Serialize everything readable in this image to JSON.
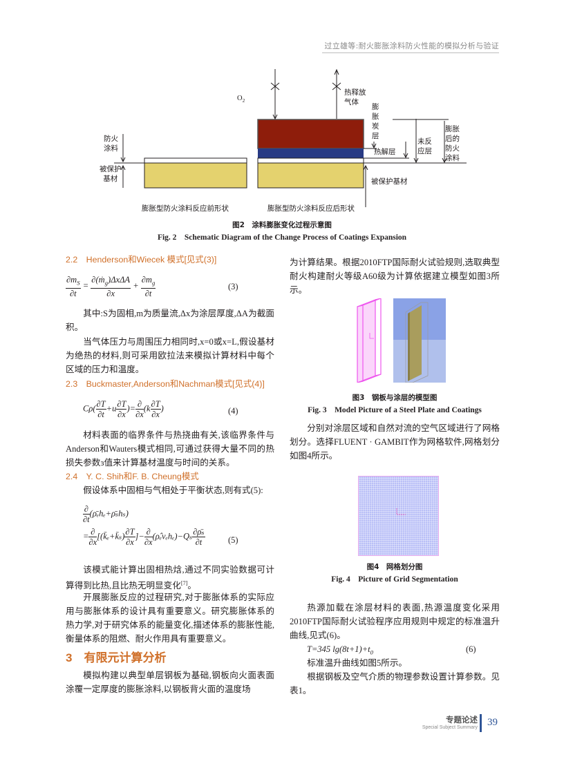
{
  "header": {
    "running_title": "过立雄等:耐火膨胀涂料防火性能的模拟分析与验证"
  },
  "figure2": {
    "labels": {
      "o2": "O",
      "o2_sub": "2",
      "gas": "热释放\n气体",
      "char": "膨\n胀\n炭\n层",
      "pyrolysis": "热解层",
      "unreacted": "未反\n应层",
      "expanded": "膨胀\n后的\n防火\n涂料",
      "coating": "防火\n涂料",
      "substrate_left": "被保护\n基材",
      "substrate_right": "被保护基材",
      "before": "膨胀型防火涂料反应前形状",
      "after": "膨胀型防火涂料反应后形状"
    },
    "colors": {
      "char": "#8e1d0b",
      "pyrolysis": "#283a84",
      "substrate": "#e4d26e"
    },
    "caption_cn": "图2　涂料膨胀变化过程示意图",
    "caption_en": "Fig. 2　Schematic Diagram of the Change Process of Coatings Expansion"
  },
  "left": {
    "h22": "2.2　Henderson和Wiecek 模式[见式(3)]",
    "eq3": {
      "lhs_n": "∂m",
      "lhs_n_sub": "S",
      "lhs_d": "∂t",
      "mid_n": "∂(ṁ",
      "mid_n_sub": "g",
      "mid_n2": ")ΔxΔA",
      "mid_d": "∂x",
      "r_n": "∂m",
      "r_n_sub": "g",
      "r_d": "∂t",
      "num": "(3)"
    },
    "p1": "其中:S为固相,m为质量流,Δx为涂层厚度,ΔA为截面积。",
    "p2": "当气体压力与周围压力相同时,x=0或x=L,假设基材为绝热的材料,则可采用欧拉法来模拟计算材料中每个区域的压力和温度。",
    "h23": "2.3　Buckmaster,Anderson和Nachman模式[见式(4)]",
    "eq4": {
      "text_a": "Cρ(",
      "f1n": "∂T",
      "f1d": "∂t",
      "text_b": "+u",
      "f2n": "∂T",
      "f2d": "∂x",
      "text_c": ")=",
      "f3n": "∂",
      "f3d": "∂x",
      "text_d": "(k",
      "f4n": "∂T",
      "f4d": "∂x",
      "text_e": ")",
      "num": "(4)"
    },
    "p3": "材料表面的临界条件与热挠曲有关,该临界条件与Anderson和Wauters模式相同,可通过获得大量不同的热损失参数ɜ值来计算基材温度与时间的关系。",
    "h24": "2.4　Y. C. Shih和F. B. Cheung模式",
    "p4": "假设体系中固相与气相处于平衡状态,则有式(5):",
    "eq5": {
      "line1": "(ρ̄ₑhₑ+ρ̄ₛhₛ)",
      "line2a": "[(k̄ₑ+k̄ₛ)",
      "line2b": "]−",
      "line2c": "(ρ̂ₑvₑhₑ)−Qₛ",
      "dn": "∂",
      "dt": "∂t",
      "dx": "∂x",
      "dT": "∂T",
      "drho": "∂ρ̄ₛ",
      "eqsign": "=",
      "num": "(5)"
    },
    "p5": "该模式能计算出固相热焓,通过不同实验数据可计算得到比热,且比热无明显变化",
    "p5_ref": "[7]",
    "p5_end": "。",
    "p6": "开展膨胀反应的过程研究,对于膨胀体系的实际应用与膨胀体系的设计具有重要意义。研究膨胀体系的热力学,对于研究体系的能量变化,描述体系的膨胀性能,衡量体系的阻燃、耐火作用具有重要意义。",
    "h3": "3　有限元计算分析",
    "p7": "模拟构建以典型单层钢板为基础,钢板向火面表面涂覆一定厚度的膨胀涂料,以钢板背火面的温度场"
  },
  "right": {
    "p1": "为计算结果。根据2010FTP国际耐火试验规则,选取典型耐火构建耐火等级A60级为计算依据建立模型如图3所示。",
    "fig3_cn": "图3　钢板与涂层的模型图",
    "fig3_en": "Fig. 3　Model Picture of a Steel Plate and Coatings",
    "p2": "分别对涂层区域和自然对流的空气区域进行了网格划分。选择FLUENT · GAMBIT作为网格软件,网格划分如图4所示。",
    "fig4_cn": "图4　网格划分图",
    "fig4_en": "Fig. 4　Picture of Grid Segmentation",
    "p3": "热源加载在涂层材料的表面,热源温度变化采用2010FTP国际耐火试验程序应用规则中规定的标准温升曲线,见式(6)。",
    "eq6": "T=345 lg(8t+1)+t",
    "eq6_sub": "0",
    "eq6_num": "(6)",
    "p4": "标准温升曲线如图5所示。",
    "p5": "根据钢板及空气介质的物理参数设置计算参数。见表1。"
  },
  "footer": {
    "section_cn": "专题论述",
    "section_en": "Special Subject Summary",
    "page": "39"
  }
}
